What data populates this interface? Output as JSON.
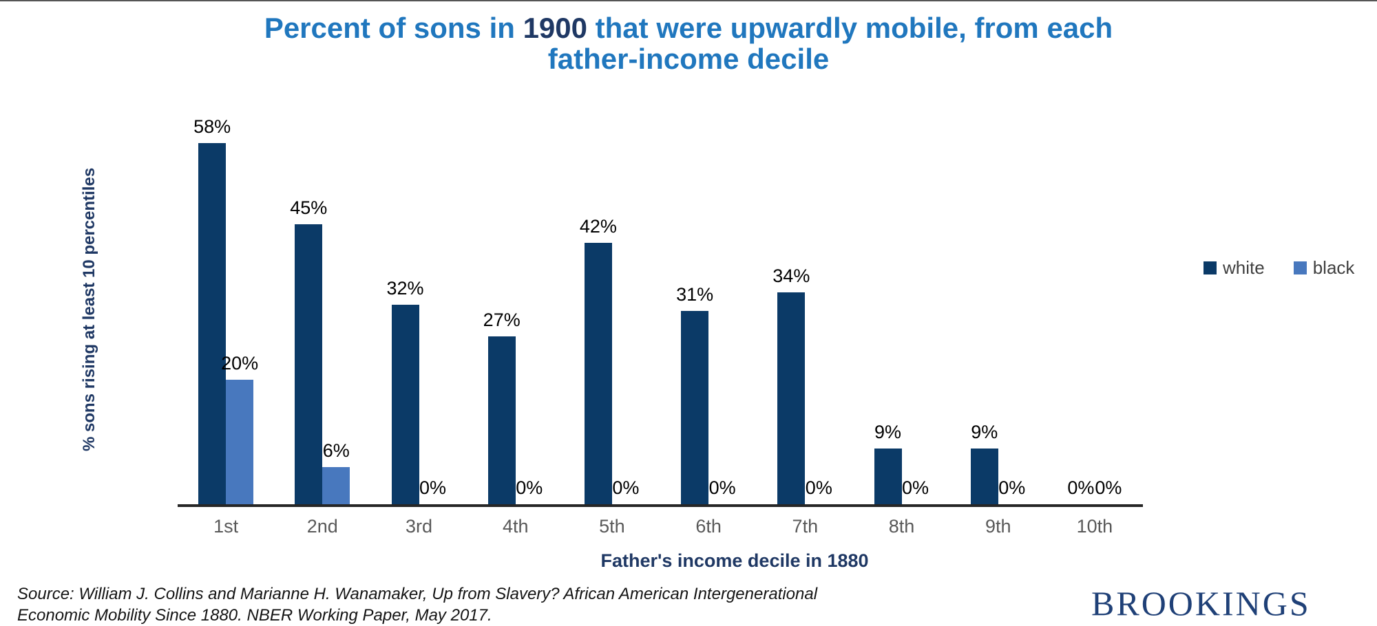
{
  "title": {
    "line1_pre": "Percent of sons in ",
    "line1_year": "1900",
    "line1_post": " that were upwardly mobile, from each",
    "line2": "father-income decile"
  },
  "chart_data": {
    "type": "bar",
    "categories": [
      "1st",
      "2nd",
      "3rd",
      "4th",
      "5th",
      "6th",
      "7th",
      "8th",
      "9th",
      "10th"
    ],
    "series": [
      {
        "name": "white",
        "color": "#0b3a67",
        "values": [
          58,
          45,
          32,
          27,
          42,
          31,
          34,
          9,
          9,
          0
        ]
      },
      {
        "name": "black",
        "color": "#4878be",
        "values": [
          20,
          6,
          0,
          0,
          0,
          0,
          0,
          0,
          0,
          0
        ]
      }
    ],
    "value_suffix": "%",
    "title": "Percent of sons in 1900 that were upwardly mobile, from each father-income decile",
    "xlabel": "Father's income decile in 1880",
    "ylabel": "% sons rising at least 10 percentiles",
    "ylim": [
      0,
      60
    ],
    "grid": false,
    "legend_position": "right",
    "bar_value_labels": true
  },
  "source": {
    "line1": "Source: William J. Collins and Marianne H. Wanamaker, Up from Slavery? African American Intergenerational",
    "line2": "Economic Mobility Since 1880. NBER Working Paper, May 2017."
  },
  "logo": {
    "text": "BROOKINGS"
  },
  "colors": {
    "title_blue": "#2077be",
    "title_year_navy": "#1f3864",
    "bar_white_series": "#0b3a67",
    "bar_black_series": "#4878be",
    "axis_tick_gray": "#595959",
    "axis_title_navy": "#1f3864",
    "axis_line": "#262626",
    "legend_text": "#404040",
    "brookings_navy": "#1f4077"
  }
}
